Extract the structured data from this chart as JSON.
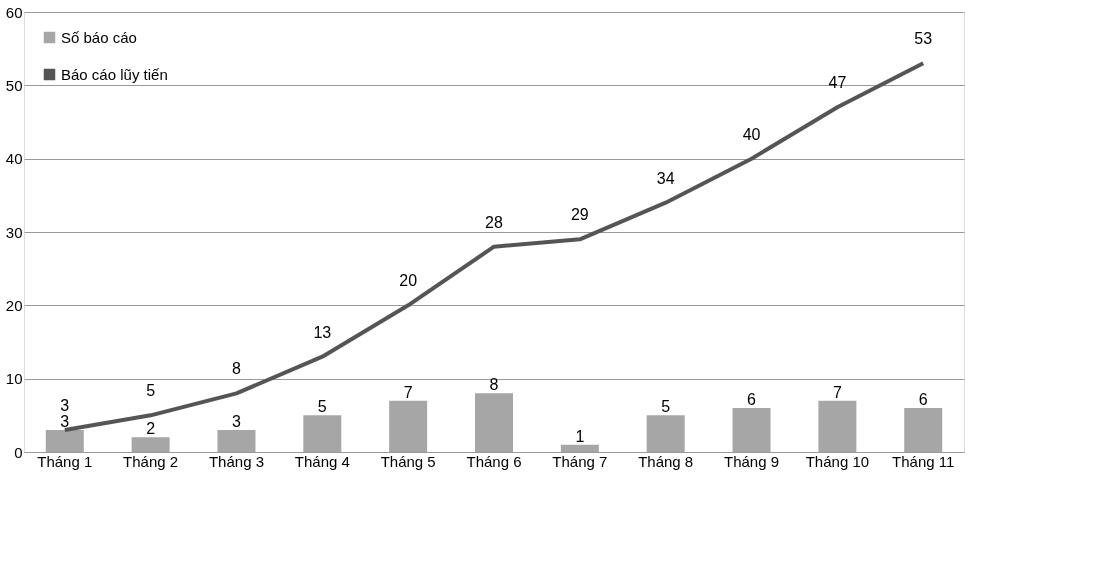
{
  "chart_data": {
    "type": "bar",
    "categories": [
      "Tháng 1",
      "Tháng 2",
      "Tháng 3",
      "Tháng 4",
      "Tháng 5",
      "Tháng 6",
      "Tháng 7",
      "Tháng 8",
      "Tháng 9",
      "Tháng 10",
      "Tháng 11"
    ],
    "series": [
      {
        "name": "Số báo cáo",
        "color": "#a6a6a6",
        "values": [
          3,
          2,
          3,
          5,
          7,
          8,
          1,
          5,
          6,
          7,
          6
        ]
      },
      {
        "name": "Báo cáo lũy tiến",
        "type": "line",
        "color": "#555555",
        "values": [
          3,
          5,
          8,
          13,
          20,
          28,
          29,
          34,
          40,
          47,
          53
        ]
      }
    ],
    "ylim": [
      0,
      60
    ],
    "yticks": [
      0,
      10,
      20,
      30,
      40,
      50,
      60
    ],
    "grid": "y",
    "legend": "top left",
    "data_labels": true,
    "marker": "none",
    "line_style": "solid"
  }
}
